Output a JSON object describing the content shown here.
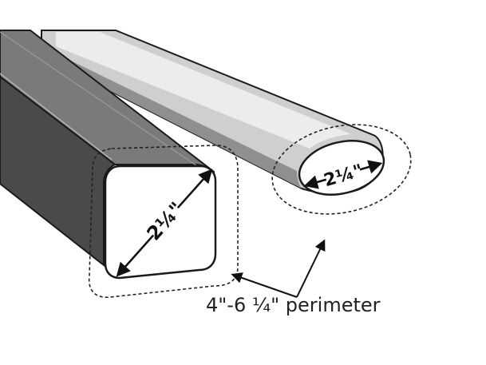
{
  "square_bar": {
    "dimension_label": "2¼\""
  },
  "round_bar": {
    "dimension_label": "2¼\""
  },
  "perimeter_label": "4\"-6 ¼\" perimeter"
}
